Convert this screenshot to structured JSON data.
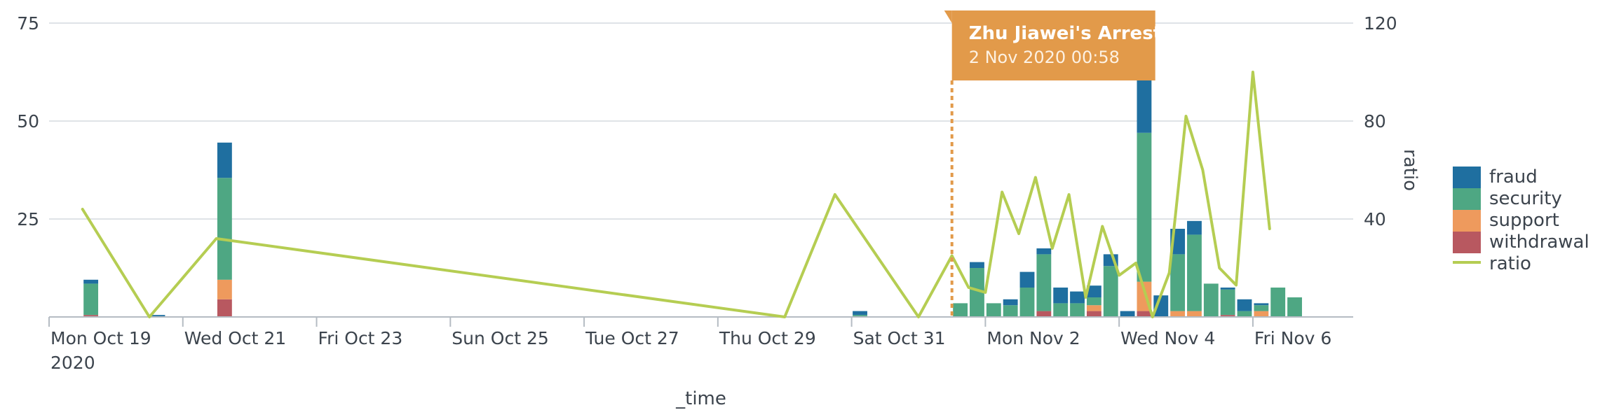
{
  "chart_data": {
    "type": "bar",
    "stacked": true,
    "x_axis": {
      "title": "_time",
      "tick_labels": [
        {
          "date": "2020-10-19",
          "label": "Mon Oct 19",
          "sublabel": "2020"
        },
        {
          "date": "2020-10-21",
          "label": "Wed Oct 21"
        },
        {
          "date": "2020-10-23",
          "label": "Fri Oct 23"
        },
        {
          "date": "2020-10-25",
          "label": "Sun Oct 25"
        },
        {
          "date": "2020-10-27",
          "label": "Tue Oct 27"
        },
        {
          "date": "2020-10-29",
          "label": "Thu Oct 29"
        },
        {
          "date": "2020-10-31",
          "label": "Sat Oct 31"
        },
        {
          "date": "2020-11-02",
          "label": "Mon Nov 2"
        },
        {
          "date": "2020-11-04",
          "label": "Wed Nov 4"
        },
        {
          "date": "2020-11-06",
          "label": "Fri Nov 6"
        }
      ],
      "range": [
        "2020-10-19 00:00",
        "2020-11-07 12:00"
      ]
    },
    "y_axis_left": {
      "ticks": [
        25,
        50,
        75
      ],
      "range": [
        0,
        75
      ],
      "grid": true
    },
    "y_axis_right": {
      "title": "ratio",
      "ticks": [
        40,
        80,
        120
      ],
      "range": [
        0,
        120
      ]
    },
    "legend": {
      "position": "right",
      "entries": [
        {
          "name": "fraud",
          "color": "#1f6fa0",
          "kind": "bar"
        },
        {
          "name": "security",
          "color": "#4ea783",
          "kind": "bar"
        },
        {
          "name": "support",
          "color": "#ee9a5d",
          "kind": "bar"
        },
        {
          "name": "withdrawal",
          "color": "#b85860",
          "kind": "bar"
        },
        {
          "name": "ratio",
          "color": "#b5cd52",
          "kind": "line"
        }
      ]
    },
    "bars": [
      {
        "t": "2020-10-19 12:00",
        "withdrawal": 0.5,
        "support": 0,
        "security": 8,
        "fraud": 1
      },
      {
        "t": "2020-10-20 12:00",
        "withdrawal": 0,
        "support": 0,
        "security": 0,
        "fraud": 0.5
      },
      {
        "t": "2020-10-21 12:00",
        "withdrawal": 4.5,
        "support": 5,
        "security": 26,
        "fraud": 9
      },
      {
        "t": "2020-10-31 00:00",
        "withdrawal": 0,
        "support": 0,
        "security": 0.5,
        "fraud": 1
      },
      {
        "t": "2020-11-01 12:00",
        "withdrawal": 0,
        "support": 0,
        "security": 3.5,
        "fraud": 0
      },
      {
        "t": "2020-11-01 18:00",
        "withdrawal": 0,
        "support": 0,
        "security": 12.5,
        "fraud": 1.5
      },
      {
        "t": "2020-11-02 00:00",
        "withdrawal": 0,
        "support": 0,
        "security": 3.5,
        "fraud": 0
      },
      {
        "t": "2020-11-02 06:00",
        "withdrawal": 0,
        "support": 0,
        "security": 3,
        "fraud": 1.5
      },
      {
        "t": "2020-11-02 12:00",
        "withdrawal": 0,
        "support": 0,
        "security": 7.5,
        "fraud": 4
      },
      {
        "t": "2020-11-02 18:00",
        "withdrawal": 1.5,
        "support": 0,
        "security": 14.5,
        "fraud": 1.5
      },
      {
        "t": "2020-11-03 00:00",
        "withdrawal": 0,
        "support": 0,
        "security": 3.5,
        "fraud": 4
      },
      {
        "t": "2020-11-03 06:00",
        "withdrawal": 0,
        "support": 0,
        "security": 3.5,
        "fraud": 3
      },
      {
        "t": "2020-11-03 12:00",
        "withdrawal": 1.5,
        "support": 1.5,
        "security": 2,
        "fraud": 3
      },
      {
        "t": "2020-11-03 18:00",
        "withdrawal": 0,
        "support": 0,
        "security": 13,
        "fraud": 3
      },
      {
        "t": "2020-11-04 00:00",
        "withdrawal": 0,
        "support": 0,
        "security": 0,
        "fraud": 1.5
      },
      {
        "t": "2020-11-04 06:00",
        "withdrawal": 1.5,
        "support": 7.5,
        "security": 38,
        "fraud": 13.5
      },
      {
        "t": "2020-11-04 12:00",
        "withdrawal": 0,
        "support": 0,
        "security": 0,
        "fraud": 5.5
      },
      {
        "t": "2020-11-04 18:00",
        "withdrawal": 0,
        "support": 1.5,
        "security": 14.5,
        "fraud": 6.5
      },
      {
        "t": "2020-11-05 00:00",
        "withdrawal": 0,
        "support": 1.5,
        "security": 19.5,
        "fraud": 3.5
      },
      {
        "t": "2020-11-05 06:00",
        "withdrawal": 0,
        "support": 0,
        "security": 8.5,
        "fraud": 0
      },
      {
        "t": "2020-11-05 12:00",
        "withdrawal": 0.5,
        "support": 0,
        "security": 6.5,
        "fraud": 0.5
      },
      {
        "t": "2020-11-05 18:00",
        "withdrawal": 0,
        "support": 0,
        "security": 1.5,
        "fraud": 3
      },
      {
        "t": "2020-11-06 00:00",
        "withdrawal": 0,
        "support": 1.5,
        "security": 1.5,
        "fraud": 0.5
      },
      {
        "t": "2020-11-06 06:00",
        "withdrawal": 0,
        "support": 0,
        "security": 7.5,
        "fraud": 0
      },
      {
        "t": "2020-11-06 12:00",
        "withdrawal": 0,
        "support": 0,
        "security": 5,
        "fraud": 0
      }
    ],
    "ratio_line": [
      {
        "t": "2020-10-19 12:00",
        "v": 44
      },
      {
        "t": "2020-10-20 12:00",
        "v": 0
      },
      {
        "t": "2020-10-21 12:00",
        "v": 32
      },
      {
        "t": "2020-10-30 00:00",
        "v": 0
      },
      {
        "t": "2020-10-30 18:00",
        "v": 50
      },
      {
        "t": "2020-11-01 00:00",
        "v": 0
      },
      {
        "t": "2020-11-01 12:00",
        "v": 25
      },
      {
        "t": "2020-11-01 18:00",
        "v": 12
      },
      {
        "t": "2020-11-02 00:00",
        "v": 10
      },
      {
        "t": "2020-11-02 06:00",
        "v": 51
      },
      {
        "t": "2020-11-02 12:00",
        "v": 34
      },
      {
        "t": "2020-11-02 18:00",
        "v": 57
      },
      {
        "t": "2020-11-03 00:00",
        "v": 28
      },
      {
        "t": "2020-11-03 06:00",
        "v": 50
      },
      {
        "t": "2020-11-03 12:00",
        "v": 8
      },
      {
        "t": "2020-11-03 18:00",
        "v": 37
      },
      {
        "t": "2020-11-04 00:00",
        "v": 17
      },
      {
        "t": "2020-11-04 06:00",
        "v": 22
      },
      {
        "t": "2020-11-04 12:00",
        "v": 0
      },
      {
        "t": "2020-11-04 18:00",
        "v": 18
      },
      {
        "t": "2020-11-05 00:00",
        "v": 82
      },
      {
        "t": "2020-11-05 06:00",
        "v": 60
      },
      {
        "t": "2020-11-05 12:00",
        "v": 20
      },
      {
        "t": "2020-11-05 18:00",
        "v": 13
      },
      {
        "t": "2020-11-06 00:00",
        "v": 100
      },
      {
        "t": "2020-11-06 06:00",
        "v": 36
      }
    ],
    "annotation": {
      "t": "2020-11-01 12:00",
      "title": "Zhu Jiawei's Arrest",
      "subtitle": "2 Nov 2020 00:58",
      "color": "#e29a4a"
    },
    "colors": {
      "grid": "#dfe3e7",
      "axis": "#b5bcc3",
      "text": "#3c444d"
    }
  }
}
